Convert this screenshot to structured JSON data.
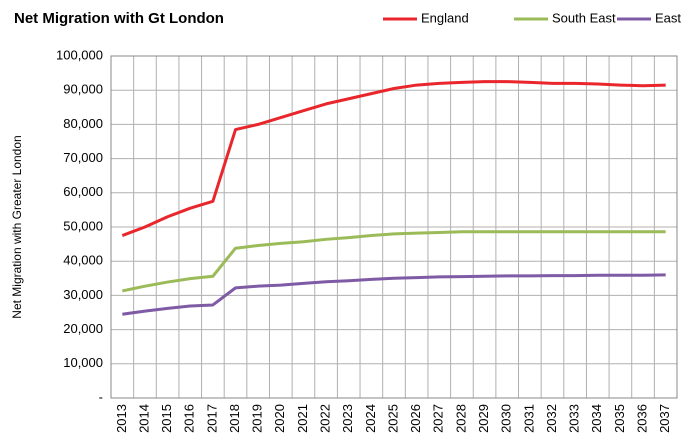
{
  "chart_data": {
    "type": "line",
    "title": "Net Migration with Gt London",
    "y_label": "Net Migration with Greater London",
    "categories": [
      "2013",
      "2014",
      "2015",
      "2016",
      "2017",
      "2018",
      "2019",
      "2020",
      "2021",
      "2022",
      "2023",
      "2024",
      "2025",
      "2026",
      "2027",
      "2028",
      "2029",
      "2030",
      "2031",
      "2032",
      "2033",
      "2034",
      "2035",
      "2036",
      "2037"
    ],
    "series": [
      {
        "name": "England",
        "color": "#e8262b",
        "values": [
          47500,
          50000,
          53000,
          55500,
          57500,
          78500,
          80000,
          82000,
          84000,
          86000,
          87500,
          89000,
          90500,
          91500,
          92000,
          92300,
          92500,
          92500,
          92300,
          92000,
          92000,
          91800,
          91500,
          91300,
          91500
        ]
      },
      {
        "name": "South East",
        "color": "#9bbb59",
        "values": [
          31300,
          32700,
          33900,
          34900,
          35600,
          43800,
          44600,
          45200,
          45700,
          46400,
          46900,
          47500,
          48000,
          48200,
          48400,
          48600,
          48600,
          48600,
          48600,
          48600,
          48600,
          48600,
          48600,
          48600,
          48600
        ]
      },
      {
        "name": "East",
        "color": "#7f5ba5",
        "values": [
          24500,
          25400,
          26200,
          26900,
          27200,
          32200,
          32700,
          33000,
          33500,
          34000,
          34300,
          34700,
          35000,
          35200,
          35400,
          35500,
          35600,
          35700,
          35700,
          35800,
          35800,
          35900,
          35900,
          35900,
          36000
        ]
      }
    ],
    "ylim": [
      0,
      100000
    ],
    "yticks": [
      {
        "value": 0,
        "label": "-"
      },
      {
        "value": 10000,
        "label": "10,000"
      },
      {
        "value": 20000,
        "label": "20,000"
      },
      {
        "value": 30000,
        "label": "30,000"
      },
      {
        "value": 40000,
        "label": "40,000"
      },
      {
        "value": 50000,
        "label": "50,000"
      },
      {
        "value": 60000,
        "label": "60,000"
      },
      {
        "value": 70000,
        "label": "70,000"
      },
      {
        "value": 80000,
        "label": "80,000"
      },
      {
        "value": 90000,
        "label": "90,000"
      },
      {
        "value": 100000,
        "label": "100,000"
      }
    ],
    "grid": true,
    "legend": "top-right"
  }
}
